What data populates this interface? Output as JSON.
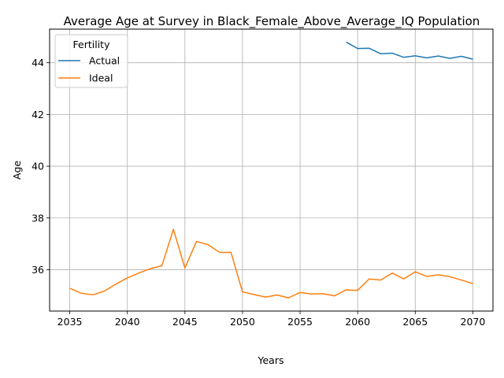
{
  "chart_data": {
    "type": "line",
    "title": "Average Age at Survey in Black_Female_Above_Average_IQ Population",
    "xlabel": "Years",
    "ylabel": "Age",
    "xlim": [
      2033.25,
      2071.75
    ],
    "ylim": [
      34.4,
      45.3
    ],
    "xticks": [
      2035,
      2040,
      2045,
      2050,
      2055,
      2060,
      2065,
      2070
    ],
    "yticks": [
      36,
      38,
      40,
      42,
      44
    ],
    "grid": true,
    "legend": {
      "title": "Fertility",
      "placement": "top-left"
    },
    "series": [
      {
        "name": "Actual",
        "color": "#1f77b4",
        "x": [
          2059,
          2060,
          2061,
          2062,
          2063,
          2064,
          2065,
          2066,
          2067,
          2068,
          2069,
          2070
        ],
        "values": [
          44.8,
          44.55,
          44.56,
          44.35,
          44.37,
          44.21,
          44.27,
          44.19,
          44.26,
          44.17,
          44.25,
          44.14
        ]
      },
      {
        "name": "Ideal",
        "color": "#ff7f0e",
        "x": [
          2035,
          2036,
          2037,
          2038,
          2039,
          2040,
          2041,
          2042,
          2043,
          2044,
          2045,
          2046,
          2047,
          2048,
          2049,
          2050,
          2051,
          2052,
          2053,
          2054,
          2055,
          2056,
          2057,
          2058,
          2059,
          2060,
          2061,
          2062,
          2063,
          2064,
          2065,
          2066,
          2067,
          2068,
          2069,
          2070
        ],
        "values": [
          35.28,
          35.09,
          35.03,
          35.17,
          35.44,
          35.68,
          35.87,
          36.04,
          36.15,
          37.56,
          36.06,
          37.09,
          36.97,
          36.67,
          36.67,
          35.14,
          35.04,
          34.94,
          35.02,
          34.91,
          35.12,
          35.06,
          35.07,
          34.99,
          35.22,
          35.2,
          35.64,
          35.6,
          35.87,
          35.64,
          35.92,
          35.74,
          35.8,
          35.73,
          35.6,
          35.46
        ]
      }
    ]
  }
}
